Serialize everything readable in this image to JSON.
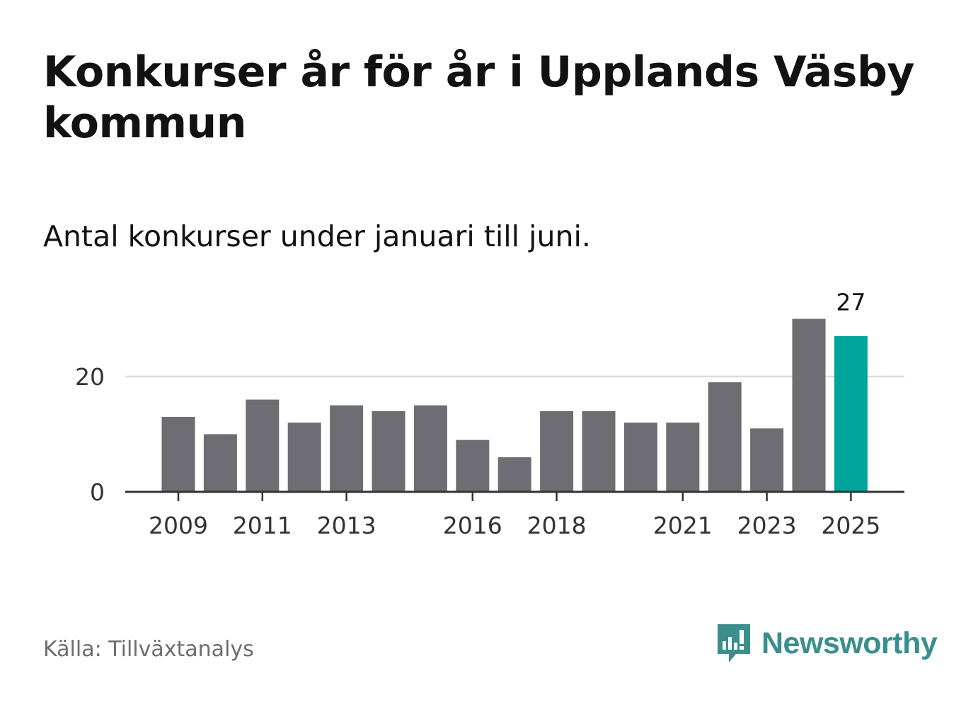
{
  "title": "Konkurser år för år i Upplands Väsby kommun",
  "subtitle": "Antal konkurser under januari till juni.",
  "source": "Källa: Tillväxtanalys",
  "brand": {
    "name": "Newsworthy",
    "icon": "newsworthy-logo-icon",
    "color": "#3a8f8d"
  },
  "chart_data": {
    "type": "bar",
    "categories": [
      "2009",
      "2010",
      "2011",
      "2012",
      "2013",
      "2014",
      "2015",
      "2016",
      "2017",
      "2018",
      "2019",
      "2020",
      "2021",
      "2022",
      "2023",
      "2024",
      "2025"
    ],
    "values": [
      13,
      10,
      16,
      12,
      15,
      14,
      15,
      9,
      6,
      14,
      14,
      12,
      12,
      19,
      11,
      30,
      27
    ],
    "x_tick_labels": [
      "2009",
      "2011",
      "2013",
      "2016",
      "2018",
      "2021",
      "2023",
      "2025"
    ],
    "y_ticks": [
      0,
      20
    ],
    "ylim": [
      0,
      30
    ],
    "grid": true,
    "highlight": {
      "category": "2025",
      "label": "27"
    },
    "colors": {
      "bar": "#6e6d73",
      "highlight": "#00a49a",
      "grid": "#dcdcdc",
      "axis": "#333333"
    },
    "title": "",
    "xlabel": "",
    "ylabel": ""
  }
}
